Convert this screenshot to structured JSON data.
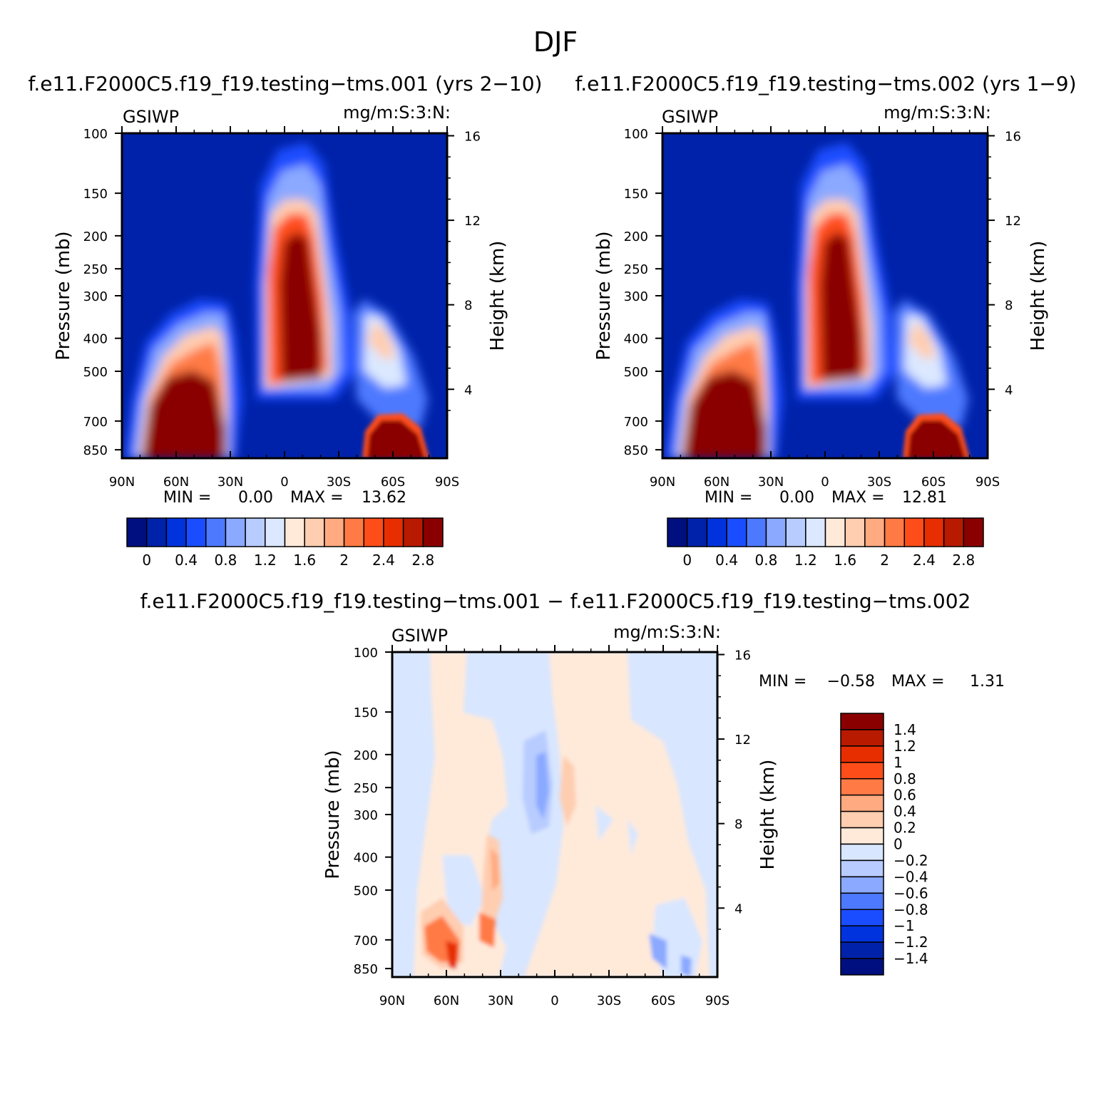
{
  "page_title": "DJF",
  "colors": {
    "top_scale": [
      "#000f80",
      "#0022aa",
      "#0033dd",
      "#1a4dff",
      "#4d79ff",
      "#8aa9ff",
      "#b8ccff",
      "#dbe8ff",
      "#ffeada",
      "#ffcdb0",
      "#ffaa80",
      "#ff7a44",
      "#ff4d1a",
      "#e62e00",
      "#b81a00",
      "#8a0000"
    ],
    "diff_scale": [
      "#000f80",
      "#0022aa",
      "#0033dd",
      "#1a4dff",
      "#4d79ff",
      "#8aa9ff",
      "#b8ccff",
      "#d8e6ff",
      "#ffeada",
      "#ffcdb0",
      "#ffaa80",
      "#ff7a44",
      "#ff4d1a",
      "#e62e00",
      "#b81a00",
      "#8a0000"
    ]
  },
  "chart_data": [
    {
      "type": "heatmap",
      "title": "f.e11.F2000C5.f19_f19.testing−tms.001 (yrs 2−10)",
      "left_label": "GSIWP",
      "right_label": "mg/m:S:3:N:",
      "ylabel": "Pressure (mb)",
      "ylabel_right": "Height (km)",
      "x_ticks": [
        "90N",
        "60N",
        "30N",
        "0",
        "30S",
        "60S",
        "90S"
      ],
      "y_ticks": [
        "100",
        "150",
        "200",
        "250",
        "300",
        "400",
        "500",
        "700",
        "850"
      ],
      "y2_ticks": [
        "16",
        "12",
        "8",
        "4"
      ],
      "min_label": "MIN =",
      "min_value": "0.00",
      "max_label": "MAX =",
      "max_value": "13.62",
      "colorbar_labels": [
        "0",
        "0.4",
        "0.8",
        "1.2",
        "1.6",
        "2",
        "2.4",
        "2.8"
      ]
    },
    {
      "type": "heatmap",
      "title": "f.e11.F2000C5.f19_f19.testing−tms.002 (yrs 1−9)",
      "left_label": "GSIWP",
      "right_label": "mg/m:S:3:N:",
      "ylabel": "Pressure (mb)",
      "ylabel_right": "Height (km)",
      "x_ticks": [
        "90N",
        "60N",
        "30N",
        "0",
        "30S",
        "60S",
        "90S"
      ],
      "y_ticks": [
        "100",
        "150",
        "200",
        "250",
        "300",
        "400",
        "500",
        "700",
        "850"
      ],
      "y2_ticks": [
        "16",
        "12",
        "8",
        "4"
      ],
      "min_label": "MIN =",
      "min_value": "0.00",
      "max_label": "MAX =",
      "max_value": "12.81",
      "colorbar_labels": [
        "0",
        "0.4",
        "0.8",
        "1.2",
        "1.6",
        "2",
        "2.4",
        "2.8"
      ]
    },
    {
      "type": "heatmap",
      "title": "f.e11.F2000C5.f19_f19.testing−tms.001 − f.e11.F2000C5.f19_f19.testing−tms.002",
      "left_label": "GSIWP",
      "right_label": "mg/m:S:3:N:",
      "ylabel": "Pressure (mb)",
      "ylabel_right": "Height (km)",
      "x_ticks": [
        "90N",
        "60N",
        "30N",
        "0",
        "30S",
        "60S",
        "90S"
      ],
      "y_ticks": [
        "100",
        "150",
        "200",
        "250",
        "300",
        "400",
        "500",
        "700",
        "850"
      ],
      "y2_ticks": [
        "16",
        "12",
        "8",
        "4"
      ],
      "min_label": "MIN =",
      "min_value": "−0.58",
      "max_label": "MAX =",
      "max_value": "1.31",
      "colorbar_labels": [
        "1.4",
        "1.2",
        "1",
        "0.8",
        "0.6",
        "0.4",
        "0.2",
        "0",
        "−0.2",
        "−0.4",
        "−0.6",
        "−0.8",
        "−1",
        "−1.2",
        "−1.4"
      ]
    }
  ]
}
